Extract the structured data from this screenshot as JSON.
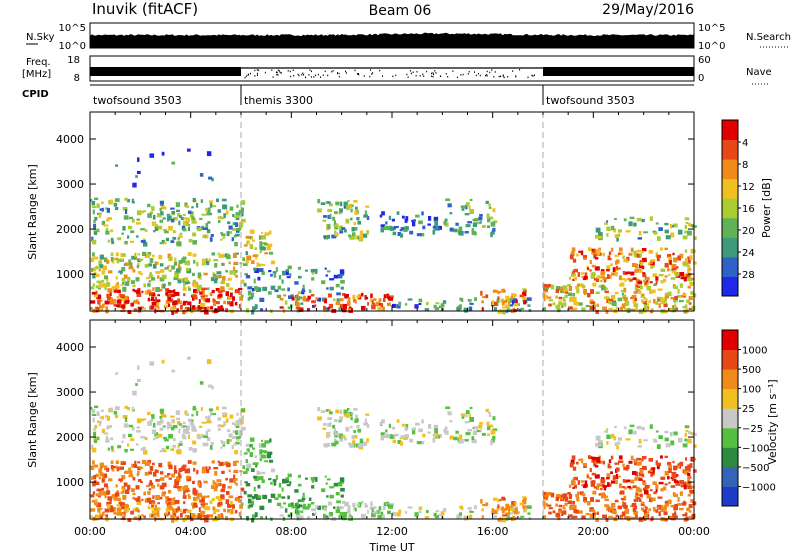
{
  "header": {
    "station": "Inuvik (fitACF)",
    "beam": "Beam 06",
    "date": "29/May/2016"
  },
  "top_panels": {
    "nsky_label": "N.Sky",
    "nsky_ticks": [
      "10^5",
      "10^0"
    ],
    "nsearch_label": "N.Search",
    "nsearch_ticks": [
      "10^5",
      "10^0"
    ],
    "freq_label_1": "Freq.",
    "freq_label_2": "[MHz]",
    "freq_ticks": [
      "18",
      "8"
    ],
    "nave_label": "Nave",
    "nave_ticks": [
      "60",
      "0"
    ],
    "cpid_label": "CPID",
    "cpid_segments": [
      {
        "label": "twofsound 3503",
        "start_h": 0
      },
      {
        "label": "themis 3300",
        "start_h": 6
      },
      {
        "label": "twofsound 3503",
        "start_h": 18
      }
    ]
  },
  "chart_data": [
    {
      "type": "heatmap",
      "ylabel": "Slant Range [km]",
      "yticks": [
        "1000",
        "2000",
        "3000",
        "4000"
      ],
      "ylim": [
        180,
        4600
      ],
      "xlim": [
        0,
        24
      ],
      "colorbar": {
        "label": "Power [dB]",
        "ticks": [
          "4",
          "8",
          "12",
          "16",
          "20",
          "24",
          "28"
        ],
        "colors": [
          "#1e28e6",
          "#2e62c8",
          "#3d9a7a",
          "#5fb255",
          "#aacc33",
          "#f0c020",
          "#f08a18",
          "#e84818",
          "#e00000"
        ]
      }
    },
    {
      "type": "heatmap",
      "ylabel": "Slant Range [km]",
      "yticks": [
        "1000",
        "2000",
        "3000",
        "4000"
      ],
      "ylim": [
        180,
        4600
      ],
      "xlim": [
        0,
        24
      ],
      "xticks": [
        "00:00",
        "04:00",
        "08:00",
        "12:00",
        "16:00",
        "20:00",
        "00:00"
      ],
      "xlabel": "Time UT",
      "colorbar": {
        "label": "Velocity [m s⁻¹]",
        "ticks": [
          "1000",
          "500",
          "100",
          "25",
          "−25",
          "−100",
          "−500",
          "−1000"
        ],
        "colors": [
          "#1e3cc8",
          "#3464b8",
          "#2e8a40",
          "#55c040",
          "#c8c8c8",
          "#f0c020",
          "#f08a18",
          "#e84818",
          "#e00000"
        ]
      }
    }
  ]
}
